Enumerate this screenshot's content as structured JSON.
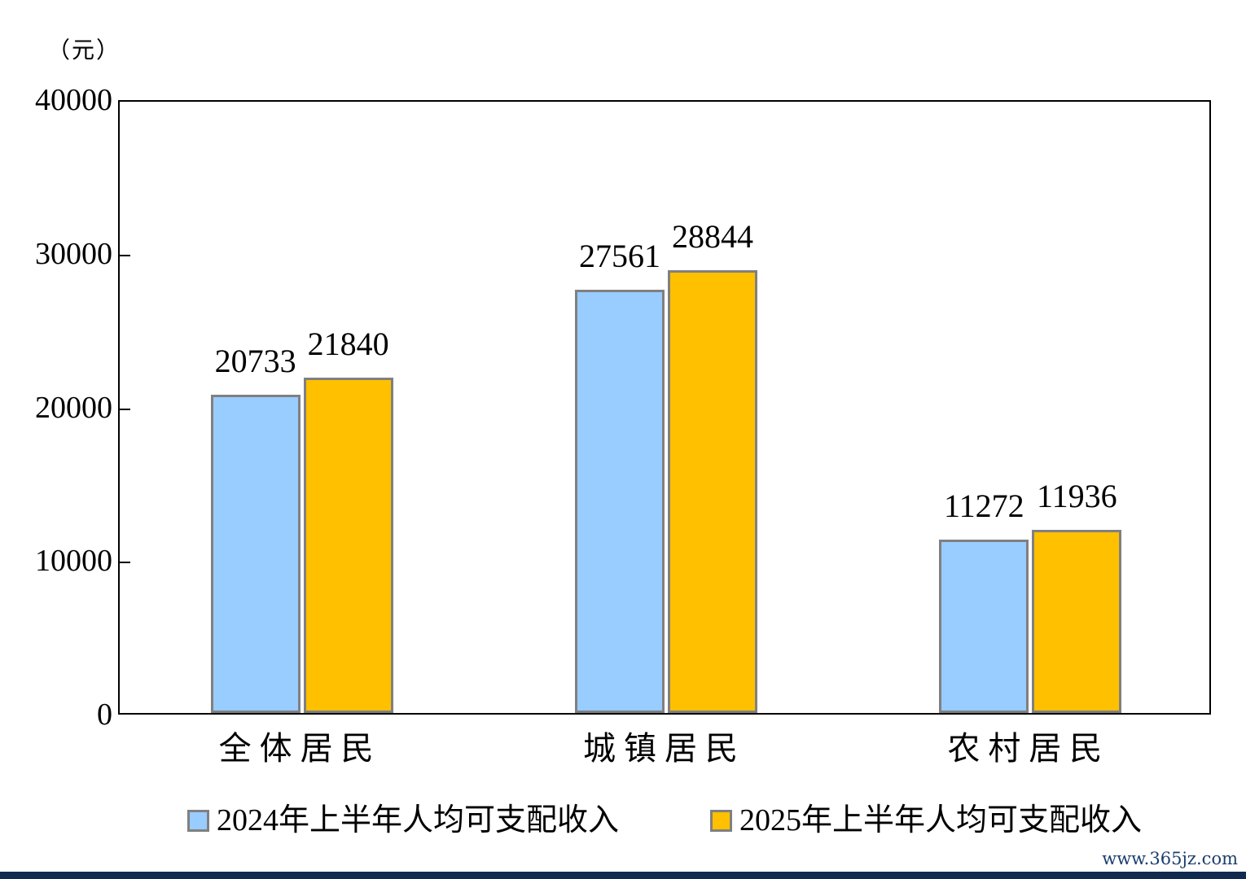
{
  "chart_data": {
    "type": "bar",
    "unit_label": "（元）",
    "categories": [
      "全体居民",
      "城镇居民",
      "农村居民"
    ],
    "series": [
      {
        "name": "2024年上半年人均可支配收入",
        "color": "#99CCFF",
        "values": [
          20733,
          27561,
          11272
        ]
      },
      {
        "name": "2025年上半年人均可支配收入",
        "color": "#FFC000",
        "values": [
          21840,
          28844,
          11936
        ]
      }
    ],
    "ylim": [
      0,
      40000
    ],
    "yticks": [
      0,
      10000,
      20000,
      30000,
      40000
    ],
    "grid": false,
    "legend_position": "bottom",
    "bar_border_color": "#808080",
    "axis_color": "#000000"
  },
  "watermark": "www.365jz.com"
}
